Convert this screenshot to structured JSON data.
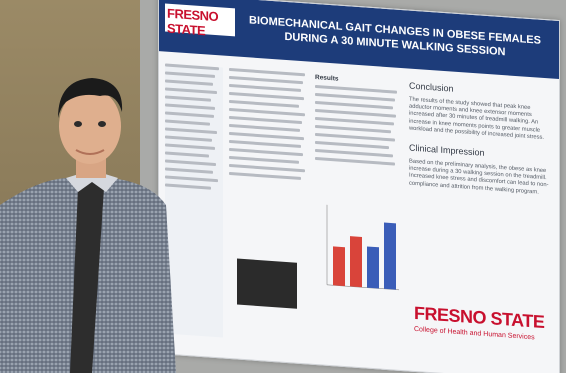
{
  "poster": {
    "header_logo": "FRESNO STATE",
    "title": "BIOMECHANICAL GAIT CHANGES IN OBESE FEMALES DURING A 30 MINUTE WALKING SESSION",
    "results_title": "Results",
    "conclusion_title": "Conclusion",
    "conclusion_text": "The results of the study showed that peak knee adductor moments and knee extensor moments increased after 30 minutes of treadmill walking. An increase in knee moments points to greater muscle workload and the possibility of increased joint stress.",
    "clinical_title": "Clinical Impression",
    "clinical_text": "Based on the preliminary analysis, the obese as knee increase during a 30 walking session on the treadmill. Increased knee stress and discomfort can lead to non-compliance and attrition from the walking program.",
    "footer_logo": "FRESNO STATE",
    "footer_sub": "College of Health and Human Services"
  },
  "chart_data": {
    "type": "bar",
    "categories": [
      "",
      "",
      "",
      ""
    ],
    "series": [
      {
        "values": [
          34,
          44,
          36,
          58
        ]
      }
    ],
    "ylim": [
      0,
      70
    ]
  },
  "colors": {
    "header": "#1d3c7a",
    "red": "#c8102e",
    "bar_red": "#d9443a",
    "bar_blue": "#3a5db8"
  }
}
